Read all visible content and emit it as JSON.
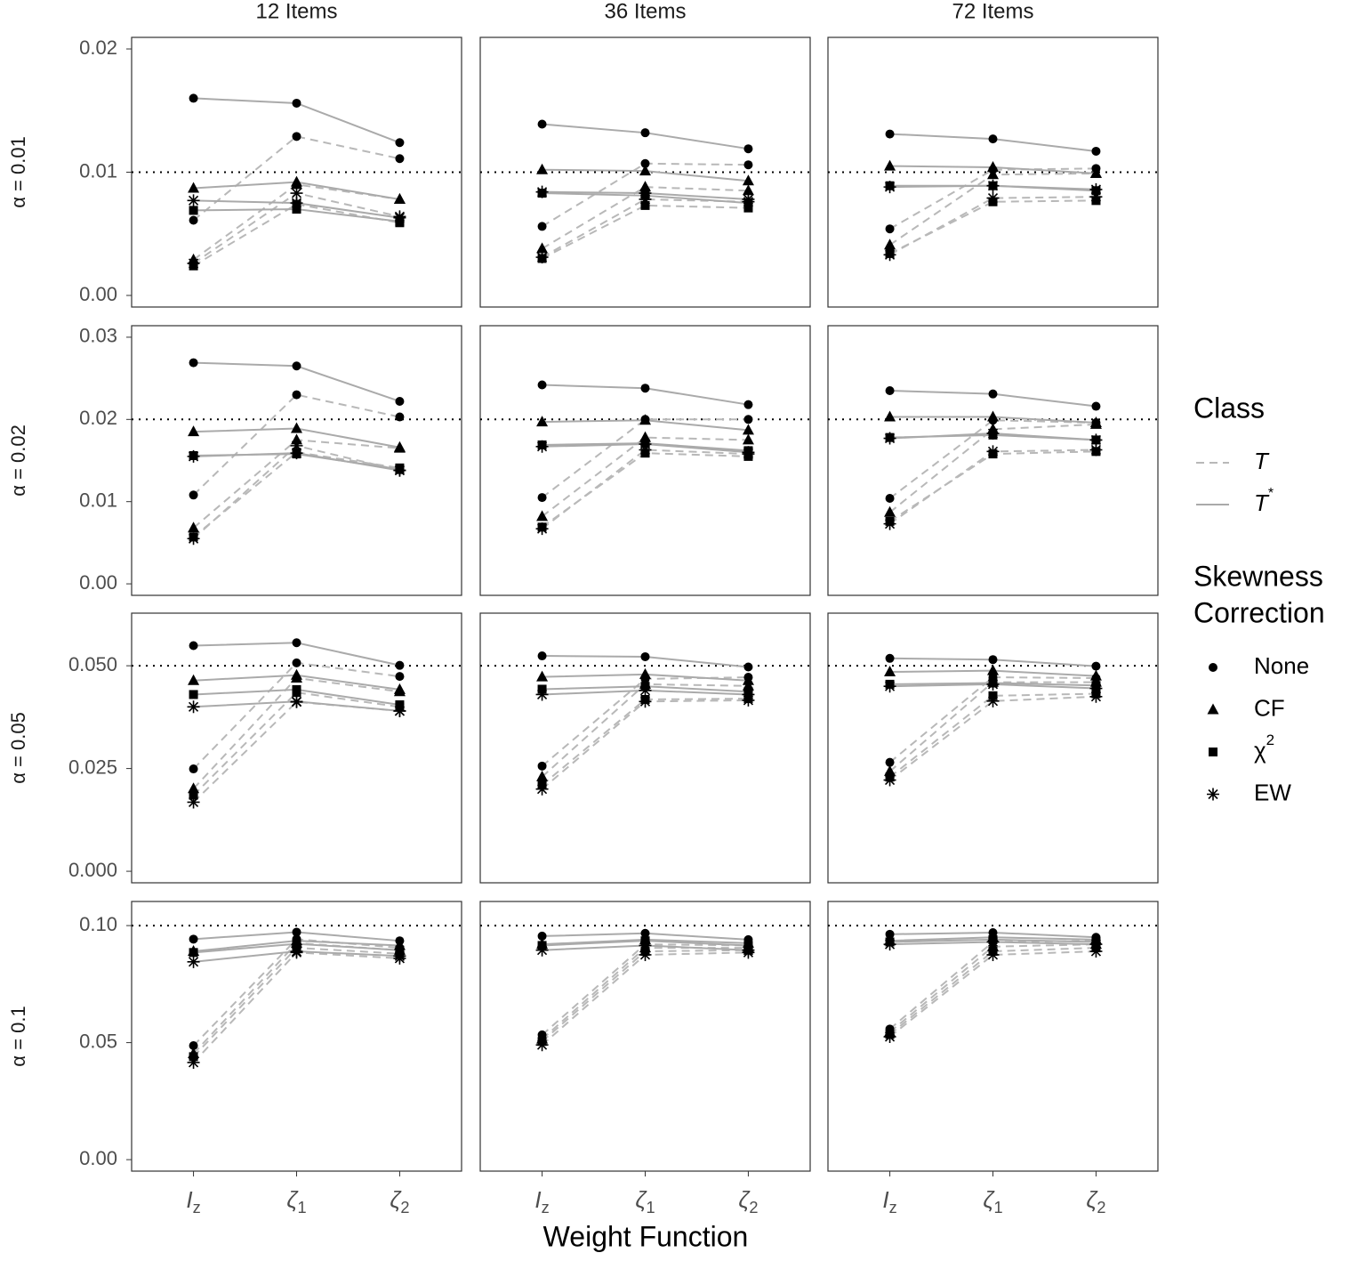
{
  "chart_data": {
    "type": "line",
    "column_labels": [
      "12 Items",
      "36 Items",
      "72 Items"
    ],
    "x_label": "Weight Function",
    "categories": [
      {
        "symbol": "I",
        "subscript": "z"
      },
      {
        "symbol": "ζ",
        "subscript": "1"
      },
      {
        "symbol": "ζ",
        "subscript": "2"
      }
    ],
    "point_color": "#000000",
    "reference_style": "dotted",
    "legend": {
      "class": {
        "title": "Class",
        "entries": [
          {
            "text": "T",
            "dash": "dashed",
            "color": "#b8b8b8"
          },
          {
            "text": "T",
            "superscript": "*",
            "dash": "solid",
            "color": "#aaaaaa"
          }
        ]
      },
      "correction": {
        "title": [
          "Skewness",
          "Correction"
        ],
        "entries": [
          {
            "text": "None",
            "shape": "circle"
          },
          {
            "text": "CF",
            "shape": "triangle"
          },
          {
            "text": "χ",
            "superscript": "2",
            "shape": "square"
          },
          {
            "text": "EW",
            "shape": "asterisk"
          }
        ]
      }
    },
    "rows": [
      {
        "label": "α = 0.01",
        "reference": 0.01,
        "ylim": [
          -0.00094,
          0.02094
        ],
        "yticks": [
          {
            "value": 0,
            "label": "0.00"
          },
          {
            "value": 0.01,
            "label": "0.01"
          },
          {
            "value": 0.02,
            "label": "0.02"
          }
        ],
        "panels": [
          {
            "values": [
              [
                [
                  0.0061,
                  0.0129,
                  0.0111
                ],
                [
                  0.0029,
                  0.009,
                  0.0078
                ],
                [
                  0.0024,
                  0.0074,
                  0.0059
                ],
                [
                  0.0026,
                  0.0083,
                  0.0064
                ]
              ],
              [
                [
                  0.016,
                  0.0156,
                  0.0124
                ],
                [
                  0.0087,
                  0.0092,
                  0.0078
                ],
                [
                  0.0069,
                  0.007,
                  0.006
                ],
                [
                  0.0077,
                  0.0075,
                  0.0063
                ]
              ]
            ]
          },
          {
            "values": [
              [
                [
                  0.0056,
                  0.0107,
                  0.0106
                ],
                [
                  0.0038,
                  0.0088,
                  0.0085
                ],
                [
                  0.003,
                  0.0073,
                  0.0071
                ],
                [
                  0.0031,
                  0.0078,
                  0.0076
                ]
              ],
              [
                [
                  0.0139,
                  0.0132,
                  0.0119
                ],
                [
                  0.0102,
                  0.0101,
                  0.0093
                ],
                [
                  0.0083,
                  0.0081,
                  0.0075
                ],
                [
                  0.0084,
                  0.0083,
                  0.0078
                ]
              ]
            ]
          },
          {
            "values": [
              [
                [
                  0.0054,
                  0.0102,
                  0.0103
                ],
                [
                  0.0041,
                  0.0098,
                  0.0099
                ],
                [
                  0.0034,
                  0.0076,
                  0.0077
                ],
                [
                  0.0033,
                  0.0079,
                  0.008
                ]
              ],
              [
                [
                  0.0131,
                  0.0127,
                  0.0117
                ],
                [
                  0.0105,
                  0.0104,
                  0.0099
                ],
                [
                  0.0089,
                  0.0089,
                  0.0085
                ],
                [
                  0.0088,
                  0.0089,
                  0.0086
                ]
              ]
            ]
          }
        ]
      },
      {
        "label": "α = 0.02",
        "reference": 0.02,
        "ylim": [
          -0.0014,
          0.0314
        ],
        "yticks": [
          {
            "value": 0,
            "label": "0.00"
          },
          {
            "value": 0.01,
            "label": "0.01"
          },
          {
            "value": 0.02,
            "label": "0.02"
          },
          {
            "value": 0.03,
            "label": "0.03"
          }
        ],
        "panels": [
          {
            "values": [
              [
                [
                  0.0108,
                  0.023,
                  0.0203
                ],
                [
                  0.0068,
                  0.0175,
                  0.0165
                ],
                [
                  0.0057,
                  0.016,
                  0.0141
                ],
                [
                  0.0055,
                  0.0168,
                  0.0138
                ]
              ],
              [
                [
                  0.0269,
                  0.0265,
                  0.0222
                ],
                [
                  0.0185,
                  0.0189,
                  0.0166
                ],
                [
                  0.0156,
                  0.0158,
                  0.0139
                ],
                [
                  0.0155,
                  0.0159,
                  0.0138
                ]
              ]
            ]
          },
          {
            "values": [
              [
                [
                  0.0105,
                  0.02,
                  0.02
                ],
                [
                  0.0082,
                  0.0178,
                  0.0175
                ],
                [
                  0.0069,
                  0.0159,
                  0.0155
                ],
                [
                  0.0067,
                  0.0163,
                  0.0158
                ]
              ],
              [
                [
                  0.0242,
                  0.0238,
                  0.0218
                ],
                [
                  0.0197,
                  0.0199,
                  0.0187
                ],
                [
                  0.0169,
                  0.0171,
                  0.0162
                ],
                [
                  0.0167,
                  0.017,
                  0.016
                ]
              ]
            ]
          },
          {
            "values": [
              [
                [
                  0.0104,
                  0.0199,
                  0.0196
                ],
                [
                  0.0087,
                  0.0188,
                  0.0194
                ],
                [
                  0.0076,
                  0.0158,
                  0.0161
                ],
                [
                  0.0073,
                  0.0161,
                  0.0163
                ]
              ],
              [
                [
                  0.0235,
                  0.0231,
                  0.0216
                ],
                [
                  0.0203,
                  0.0203,
                  0.0196
                ],
                [
                  0.0178,
                  0.0181,
                  0.0175
                ],
                [
                  0.0177,
                  0.0183,
                  0.0175
                ]
              ]
            ]
          }
        ]
      },
      {
        "label": "α = 0.05",
        "reference": 0.05,
        "ylim": [
          -0.0028,
          0.0628
        ],
        "yticks": [
          {
            "value": 0,
            "label": "0.000"
          },
          {
            "value": 0.025,
            "label": "0.025"
          },
          {
            "value": 0.05,
            "label": "0.050"
          }
        ],
        "panels": [
          {
            "values": [
              [
                [
                  0.0249,
                  0.0507,
                  0.0474
                ],
                [
                  0.0201,
                  0.047,
                  0.0437
                ],
                [
                  0.0185,
                  0.0435,
                  0.04
                ],
                [
                  0.0168,
                  0.0412,
                  0.039
                ]
              ],
              [
                [
                  0.0549,
                  0.0556,
                  0.0501
                ],
                [
                  0.0464,
                  0.0477,
                  0.0442
                ],
                [
                  0.043,
                  0.0442,
                  0.0405
                ],
                [
                  0.04,
                  0.0413,
                  0.039
                ]
              ]
            ]
          },
          {
            "values": [
              [
                [
                  0.0256,
                  0.0468,
                  0.0472
                ],
                [
                  0.023,
                  0.0455,
                  0.0451
                ],
                [
                  0.021,
                  0.0418,
                  0.042
                ],
                [
                  0.02,
                  0.0413,
                  0.0416
                ]
              ],
              [
                [
                  0.0524,
                  0.0522,
                  0.0497
                ],
                [
                  0.0473,
                  0.0479,
                  0.0464
                ],
                [
                  0.0443,
                  0.045,
                  0.0437
                ],
                [
                  0.043,
                  0.044,
                  0.043
                ]
              ]
            ]
          },
          {
            "values": [
              [
                [
                  0.0265,
                  0.0472,
                  0.047
                ],
                [
                  0.0243,
                  0.046,
                  0.046
                ],
                [
                  0.0229,
                  0.0427,
                  0.0432
                ],
                [
                  0.0222,
                  0.0414,
                  0.0425
                ]
              ],
              [
                [
                  0.0518,
                  0.0515,
                  0.0499
                ],
                [
                  0.0485,
                  0.0488,
                  0.0475
                ],
                [
                  0.0455,
                  0.0458,
                  0.0452
                ],
                [
                  0.045,
                  0.0455,
                  0.0445
                ]
              ]
            ]
          }
        ]
      },
      {
        "label": "α = 0.1",
        "reference": 0.1,
        "ylim": [
          -0.0049,
          0.1103
        ],
        "yticks": [
          {
            "value": 0,
            "label": "0.00"
          },
          {
            "value": 0.05,
            "label": "0.05"
          },
          {
            "value": 0.1,
            "label": "0.10"
          }
        ],
        "panels": [
          {
            "values": [
              [
                [
                  0.0487,
                  0.0942,
                  0.0905
                ],
                [
                  0.0453,
                  0.0925,
                  0.0895
                ],
                [
                  0.044,
                  0.0905,
                  0.088
                ],
                [
                  0.0415,
                  0.0885,
                  0.086
                ]
              ],
              [
                [
                  0.0942,
                  0.0972,
                  0.0935
                ],
                [
                  0.089,
                  0.0935,
                  0.0915
                ],
                [
                  0.0885,
                  0.0922,
                  0.0895
                ],
                [
                  0.0845,
                  0.089,
                  0.087
                ]
              ]
            ]
          },
          {
            "values": [
              [
                [
                  0.0533,
                  0.092,
                  0.0915
                ],
                [
                  0.0515,
                  0.0905,
                  0.0905
                ],
                [
                  0.0505,
                  0.089,
                  0.0895
                ],
                [
                  0.049,
                  0.0875,
                  0.0885
                ]
              ],
              [
                [
                  0.0955,
                  0.0967,
                  0.094
                ],
                [
                  0.092,
                  0.094,
                  0.0925
                ],
                [
                  0.0915,
                  0.0935,
                  0.0915
                ],
                [
                  0.0895,
                  0.0915,
                  0.0895
                ]
              ]
            ]
          },
          {
            "values": [
              [
                [
                  0.0558,
                  0.093,
                  0.0935
                ],
                [
                  0.0545,
                  0.091,
                  0.092
                ],
                [
                  0.0535,
                  0.089,
                  0.0905
                ],
                [
                  0.0525,
                  0.0875,
                  0.089
                ]
              ],
              [
                [
                  0.0963,
                  0.097,
                  0.095
                ],
                [
                  0.0935,
                  0.095,
                  0.094
                ],
                [
                  0.093,
                  0.094,
                  0.093
                ],
                [
                  0.092,
                  0.093,
                  0.092
                ]
              ]
            ]
          }
        ]
      }
    ]
  }
}
